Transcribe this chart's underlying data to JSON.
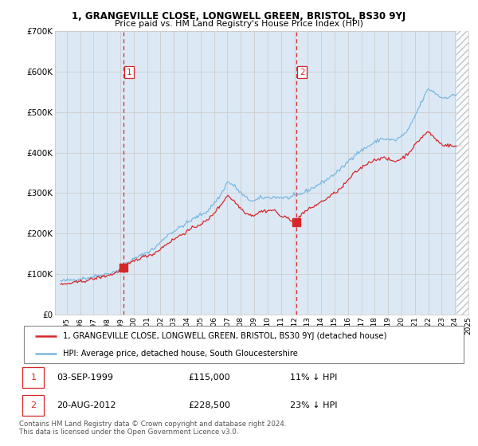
{
  "title1": "1, GRANGEVILLE CLOSE, LONGWELL GREEN, BRISTOL, BS30 9YJ",
  "title2": "Price paid vs. HM Land Registry's House Price Index (HPI)",
  "hpi_color": "#7ab8e0",
  "price_color": "#d62728",
  "sale1_x": 1999.708,
  "sale1_price": 115000,
  "sale2_x": 2012.625,
  "sale2_price": 228500,
  "legend_line1": "1, GRANGEVILLE CLOSE, LONGWELL GREEN, BRISTOL, BS30 9YJ (detached house)",
  "legend_line2": "HPI: Average price, detached house, South Gloucestershire",
  "table_row1": [
    "1",
    "03-SEP-1999",
    "£115,000",
    "11% ↓ HPI"
  ],
  "table_row2": [
    "2",
    "20-AUG-2012",
    "£228,500",
    "23% ↓ HPI"
  ],
  "footnote": "Contains HM Land Registry data © Crown copyright and database right 2024.\nThis data is licensed under the Open Government Licence v3.0.",
  "ylim": [
    0,
    700000
  ],
  "yticks": [
    0,
    100000,
    200000,
    300000,
    400000,
    500000,
    600000,
    700000
  ],
  "ytick_labels": [
    "£0",
    "£100K",
    "£200K",
    "£300K",
    "£400K",
    "£500K",
    "£600K",
    "£700K"
  ],
  "bg_color": "#FFFFFF",
  "plot_bg": "#dce9f5",
  "grid_color": "#CCCCCC",
  "hpi_keypoints": [
    [
      1995.0,
      82000
    ],
    [
      1996.0,
      86000
    ],
    [
      1997.0,
      90000
    ],
    [
      1998.0,
      97000
    ],
    [
      1999.0,
      104000
    ],
    [
      1999.5,
      112000
    ],
    [
      2000.0,
      128000
    ],
    [
      2001.0,
      145000
    ],
    [
      2002.0,
      162000
    ],
    [
      2002.5,
      178000
    ],
    [
      2003.0,
      196000
    ],
    [
      2004.0,
      216000
    ],
    [
      2005.0,
      237000
    ],
    [
      2006.0,
      255000
    ],
    [
      2007.0,
      295000
    ],
    [
      2007.5,
      328000
    ],
    [
      2008.0,
      318000
    ],
    [
      2008.5,
      300000
    ],
    [
      2009.0,
      285000
    ],
    [
      2009.5,
      280000
    ],
    [
      2010.0,
      288000
    ],
    [
      2011.0,
      290000
    ],
    [
      2012.0,
      288000
    ],
    [
      2012.5,
      292000
    ],
    [
      2013.0,
      298000
    ],
    [
      2014.0,
      315000
    ],
    [
      2015.0,
      335000
    ],
    [
      2016.0,
      360000
    ],
    [
      2017.0,
      395000
    ],
    [
      2018.0,
      415000
    ],
    [
      2019.0,
      435000
    ],
    [
      2020.0,
      430000
    ],
    [
      2020.5,
      440000
    ],
    [
      2021.0,
      455000
    ],
    [
      2021.5,
      490000
    ],
    [
      2022.0,
      525000
    ],
    [
      2022.5,
      558000
    ],
    [
      2023.0,
      548000
    ],
    [
      2023.5,
      535000
    ],
    [
      2024.0,
      538000
    ],
    [
      2024.5,
      542000
    ],
    [
      2025.0,
      548000
    ]
  ],
  "price_keypoints": [
    [
      1995.0,
      73000
    ],
    [
      1996.0,
      78000
    ],
    [
      1997.0,
      84000
    ],
    [
      1998.0,
      92000
    ],
    [
      1999.0,
      100000
    ],
    [
      1999.708,
      115000
    ],
    [
      2000.5,
      132000
    ],
    [
      2001.0,
      140000
    ],
    [
      2002.0,
      150000
    ],
    [
      2002.5,
      162000
    ],
    [
      2003.0,
      175000
    ],
    [
      2004.0,
      196000
    ],
    [
      2005.0,
      215000
    ],
    [
      2006.0,
      232000
    ],
    [
      2007.0,
      270000
    ],
    [
      2007.5,
      295000
    ],
    [
      2008.0,
      280000
    ],
    [
      2008.5,
      262000
    ],
    [
      2009.0,
      248000
    ],
    [
      2009.5,
      245000
    ],
    [
      2010.0,
      255000
    ],
    [
      2011.0,
      258000
    ],
    [
      2011.5,
      242000
    ],
    [
      2012.0,
      238000
    ],
    [
      2012.625,
      228500
    ],
    [
      2013.0,
      248000
    ],
    [
      2014.0,
      268000
    ],
    [
      2015.0,
      288000
    ],
    [
      2016.0,
      312000
    ],
    [
      2017.0,
      350000
    ],
    [
      2018.0,
      375000
    ],
    [
      2019.0,
      388000
    ],
    [
      2020.0,
      378000
    ],
    [
      2020.5,
      385000
    ],
    [
      2021.0,
      398000
    ],
    [
      2022.0,
      438000
    ],
    [
      2022.5,
      452000
    ],
    [
      2023.0,
      435000
    ],
    [
      2023.5,
      420000
    ],
    [
      2024.0,
      418000
    ],
    [
      2024.5,
      415000
    ],
    [
      2025.0,
      418000
    ]
  ]
}
